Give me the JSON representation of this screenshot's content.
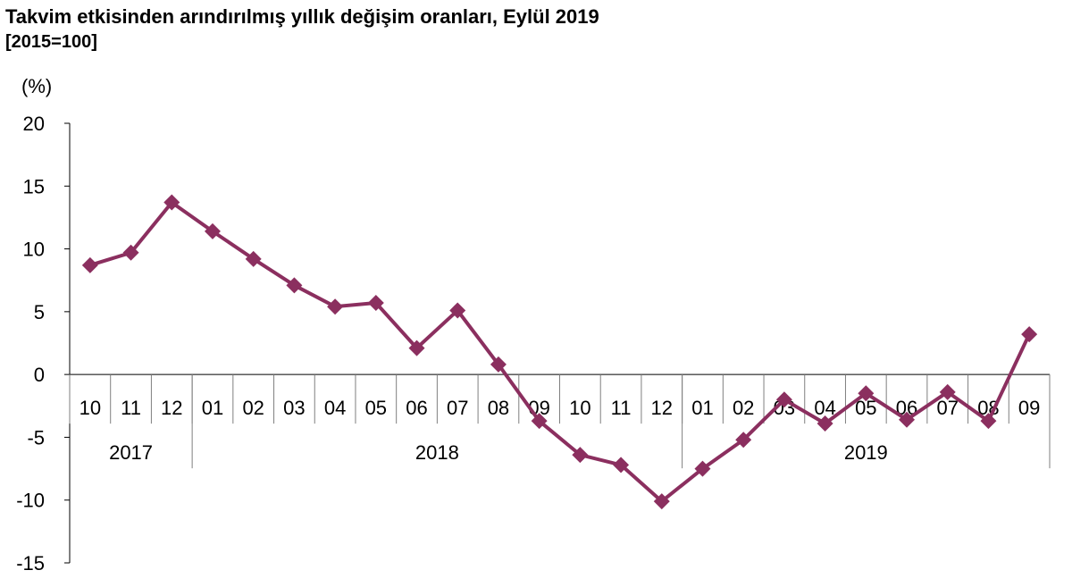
{
  "title": "Takvim etkisinden arındırılmış yıllık değişim oranları, Eylül 2019",
  "subtitle": "[2015=100]",
  "y_unit": "(%)",
  "colors": {
    "series": "#8B2F5F",
    "axis": "#000000",
    "separator": "#7f7f7f"
  },
  "chart_data": {
    "type": "line",
    "ylim": [
      -15,
      20
    ],
    "yticks": [
      "20",
      "15",
      "10",
      "5",
      "0",
      "-5",
      "-10",
      "-15"
    ],
    "grid": false,
    "legend": "none",
    "marker": "diamond",
    "categories": [
      "10",
      "11",
      "12",
      "01",
      "02",
      "03",
      "04",
      "05",
      "06",
      "07",
      "08",
      "09",
      "10",
      "11",
      "12",
      "01",
      "02",
      "03",
      "04",
      "05",
      "06",
      "07",
      "08",
      "09"
    ],
    "years": [
      {
        "label": "2017",
        "start": 0,
        "count": 3
      },
      {
        "label": "2018",
        "start": 3,
        "count": 12
      },
      {
        "label": "2019",
        "start": 15,
        "count": 9
      }
    ],
    "series": [
      {
        "values": [
          8.7,
          9.7,
          13.7,
          11.4,
          9.2,
          7.1,
          5.4,
          5.7,
          2.1,
          5.1,
          0.8,
          -3.7,
          -6.4,
          -7.2,
          -10.1,
          -7.5,
          -5.2,
          -2.0,
          -3.9,
          -1.5,
          -3.6,
          -1.4,
          -3.7,
          3.2
        ]
      }
    ]
  }
}
